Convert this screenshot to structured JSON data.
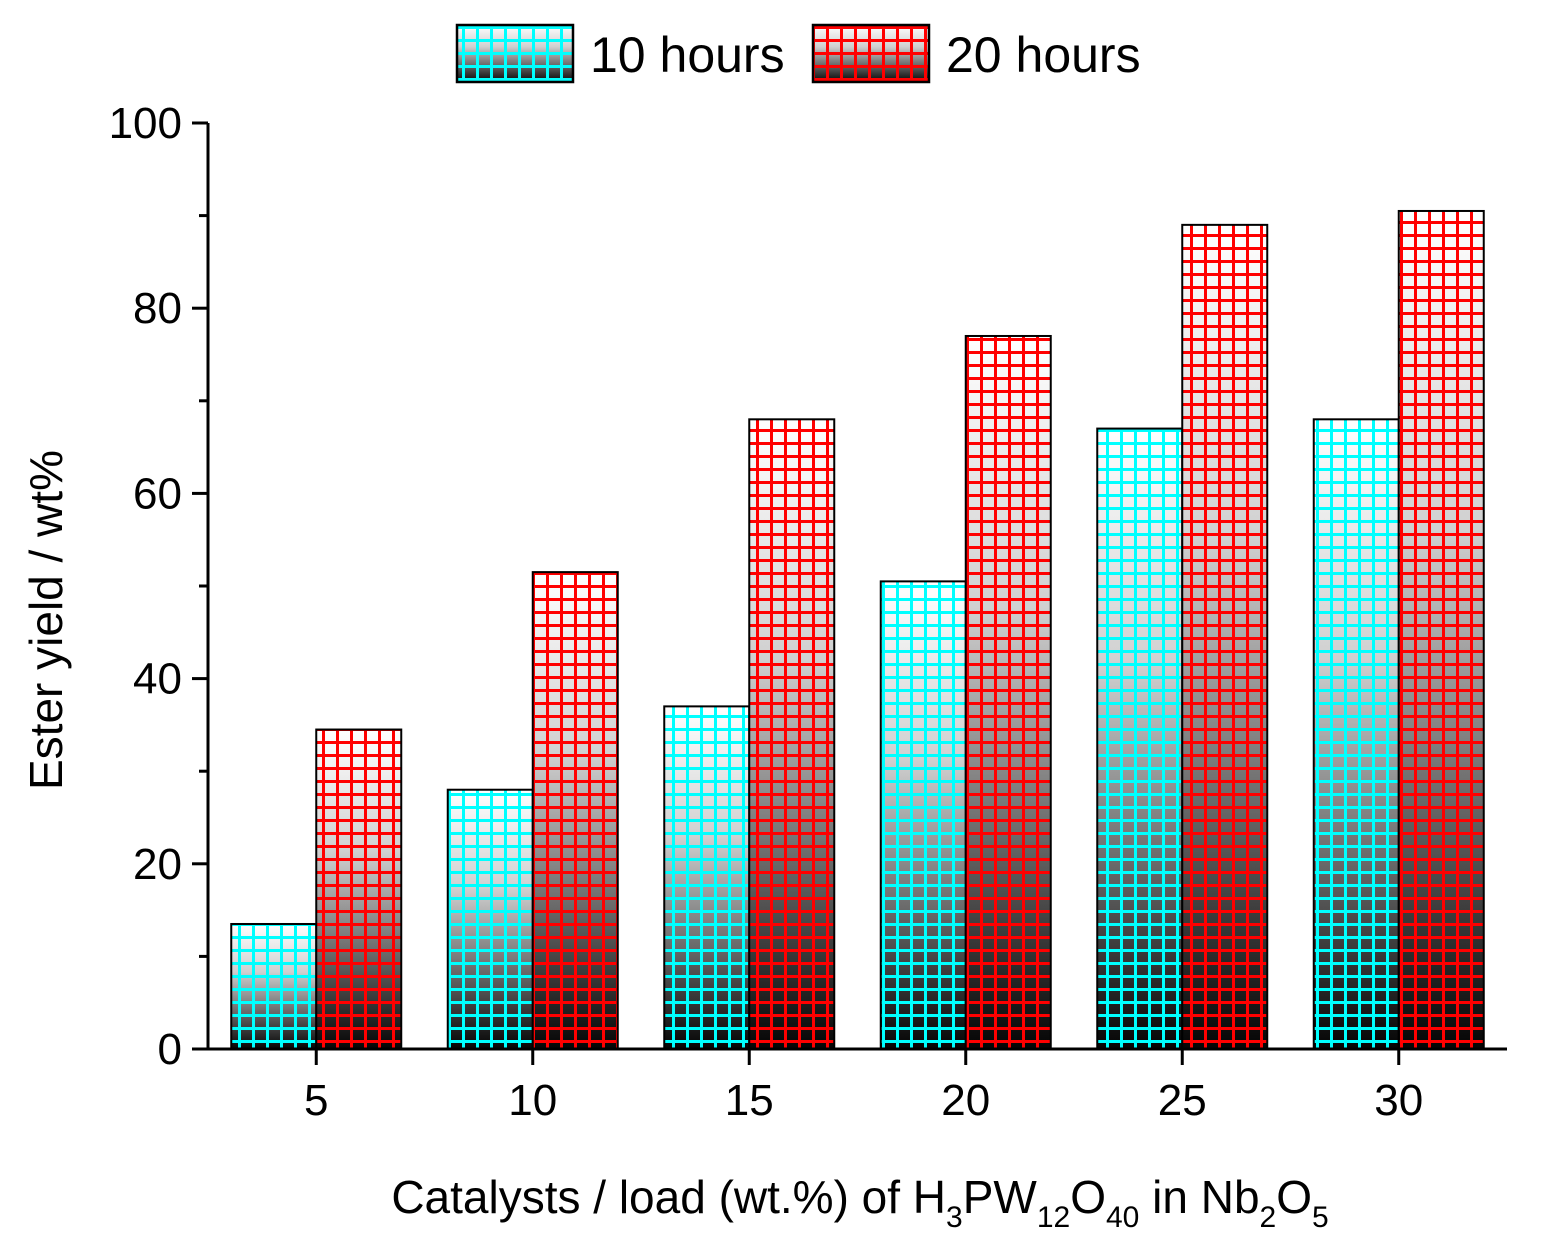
{
  "chart_data": {
    "type": "bar",
    "title": "",
    "categories": [
      "5",
      "10",
      "15",
      "20",
      "25",
      "30"
    ],
    "series": [
      {
        "name": "10 hours",
        "color": "#00ffff",
        "values": [
          13.5,
          28,
          37,
          50.5,
          67,
          68
        ]
      },
      {
        "name": "20 hours",
        "color": "#ff0000",
        "values": [
          34.5,
          51.5,
          68,
          77,
          89,
          90.5
        ]
      }
    ],
    "ylabel": "Ester yield / wt%",
    "xlabel": {
      "prefix": "Catalysts / load (wt.%)  of H",
      "sub1": "3",
      "mid1": "PW",
      "sub2": "12",
      "mid2": "O",
      "sub3": "40",
      "mid3": " in Nb",
      "sub4": "2",
      "mid4": "O",
      "sub5": "5"
    },
    "ylim": [
      0,
      100
    ],
    "yticks": [
      "0",
      "20",
      "40",
      "60",
      "80",
      "100"
    ],
    "legend_position": "top-center",
    "grid": false
  }
}
